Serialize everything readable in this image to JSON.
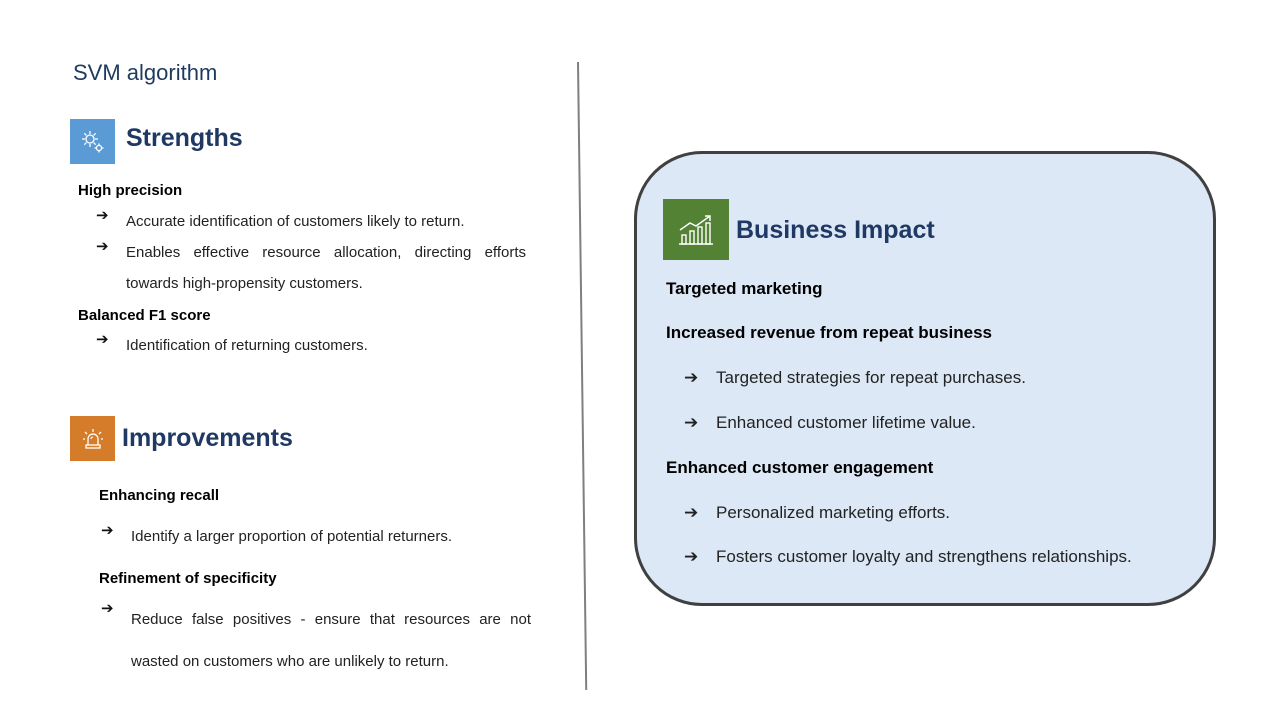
{
  "slide": {
    "title": "SVM algorithm"
  },
  "strengths": {
    "heading": "Strengths",
    "icon": "gears-icon",
    "icon_color": "#5b9bd5",
    "groups": [
      {
        "title": "High precision",
        "bullets": [
          "Accurate identification of customers likely to return.",
          "Enables effective resource allocation, directing efforts towards high-propensity customers."
        ]
      },
      {
        "title": "Balanced F1 score",
        "bullets": [
          "Identification of returning customers."
        ]
      }
    ]
  },
  "improvements": {
    "heading": "Improvements",
    "icon": "siren-icon",
    "icon_color": "#d47c2a",
    "groups": [
      {
        "title": "Enhancing recall",
        "bullets": [
          "Identify a larger proportion of potential returners."
        ]
      },
      {
        "title": "Refinement of specificity",
        "bullets": [
          "Reduce false positives - ensure that resources are not wasted on customers who are unlikely to return."
        ]
      }
    ]
  },
  "business_impact": {
    "heading": "Business Impact",
    "icon": "growth-chart-icon",
    "icon_color": "#548235",
    "box_color": "#dce8f5",
    "items": [
      {
        "title": "Targeted marketing",
        "bullets": []
      },
      {
        "title": "Increased revenue from repeat business",
        "bullets": [
          "Targeted strategies for repeat purchases.",
          "Enhanced customer lifetime value."
        ]
      },
      {
        "title": "Enhanced customer engagement",
        "bullets": [
          "Personalized marketing efforts.",
          "Fosters customer loyalty and strengthens relationships."
        ]
      }
    ]
  },
  "arrow_glyph": "➔"
}
